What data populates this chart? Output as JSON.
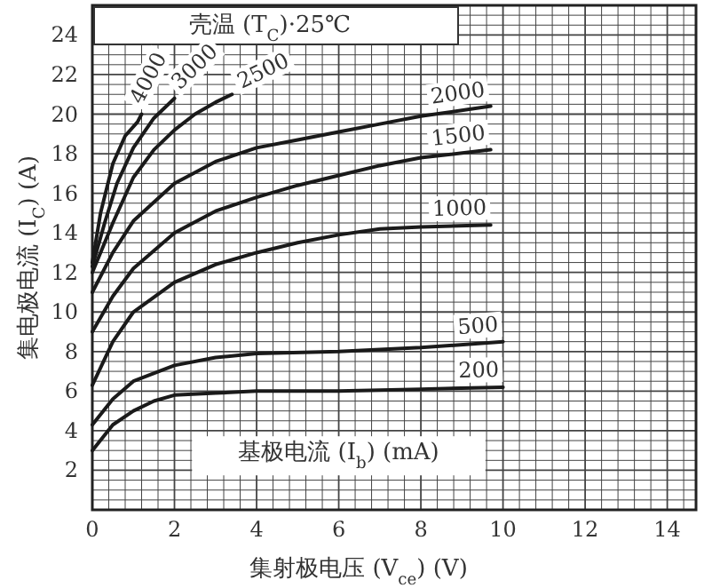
{
  "chart_data": {
    "type": "line",
    "title": "壳温 (T$_{C}$)·25℃",
    "xlabel": "集射极电压 (V$_{ce}$) (V)",
    "ylabel": "集电极电流 (I$_{C}$) (A)",
    "xlim": [
      0,
      14.7
    ],
    "ylim": [
      0,
      25.5
    ],
    "xticks": [
      0,
      2,
      4,
      6,
      8,
      10,
      12,
      14
    ],
    "yticks": [
      2,
      4,
      6,
      8,
      10,
      12,
      14,
      16,
      18,
      20,
      22,
      24
    ],
    "grid": true,
    "line_style": "solid",
    "marker": "none",
    "series": [
      {
        "color": "#1a1a1a",
        "x": [
          0,
          0.5,
          1,
          1.5,
          2,
          3,
          4,
          6,
          8,
          10
        ],
        "values": [
          3,
          4.3,
          5,
          5.5,
          5.8,
          5.9,
          6,
          6,
          6.1,
          6.2
        ]
      },
      {
        "color": "#1a1a1a",
        "x": [
          0,
          0.5,
          1,
          2,
          3,
          4,
          6,
          8,
          10
        ],
        "values": [
          4.3,
          5.6,
          6.5,
          7.3,
          7.7,
          7.9,
          8,
          8.2,
          8.5
        ]
      },
      {
        "color": "#1a1a1a",
        "x": [
          0,
          0.5,
          1,
          2,
          3,
          4,
          5,
          6,
          7,
          8,
          9.7
        ],
        "values": [
          6.3,
          8.5,
          10,
          11.5,
          12.4,
          13,
          13.5,
          13.9,
          14.2,
          14.3,
          14.4
        ]
      },
      {
        "color": "#1a1a1a",
        "x": [
          0,
          0.5,
          1,
          2,
          3,
          4,
          5,
          6,
          7,
          8,
          9.7
        ],
        "values": [
          9,
          10.8,
          12.2,
          14,
          15.1,
          15.8,
          16.4,
          16.9,
          17.4,
          17.8,
          18.2
        ]
      },
      {
        "color": "#1a1a1a",
        "x": [
          0,
          0.5,
          1,
          2,
          3,
          4,
          5,
          6,
          7,
          8,
          9.7
        ],
        "values": [
          11,
          13,
          14.6,
          16.5,
          17.6,
          18.3,
          18.7,
          19.1,
          19.5,
          19.9,
          20.4
        ]
      },
      {
        "color": "#1a1a1a",
        "x": [
          0,
          0.5,
          1,
          1.5,
          2,
          2.5,
          3,
          3.4
        ],
        "values": [
          12,
          14.5,
          16.8,
          18.2,
          19.2,
          20,
          20.6,
          21
        ]
      },
      {
        "color": "#1a1a1a",
        "x": [
          0,
          0.3,
          0.6,
          1,
          1.5,
          2
        ],
        "values": [
          12.3,
          14.5,
          16.5,
          18.3,
          19.8,
          20.8
        ]
      },
      {
        "color": "#1a1a1a",
        "x": [
          0,
          0.2,
          0.5,
          0.8,
          1.1,
          1.2
        ],
        "values": [
          12.5,
          15,
          17.5,
          18.9,
          19.6,
          20
        ]
      }
    ],
    "annotations": [
      {
        "text": "200",
        "x": 10,
        "y": 6.2
      },
      {
        "text": "500",
        "x": 10,
        "y": 8.5
      },
      {
        "text": "1000",
        "x": 9.7,
        "y": 14.4
      },
      {
        "text": "1500",
        "x": 9.7,
        "y": 18.2
      },
      {
        "text": "2000",
        "x": 9.7,
        "y": 20.4
      },
      {
        "text": "2500",
        "x": 3.4,
        "y": 21
      },
      {
        "text": "3000",
        "x": 2,
        "y": 20.8
      },
      {
        "text": "4000",
        "x": 1.2,
        "y": 20
      },
      "基极电流 (I$_{b}$) (mA)"
    ]
  }
}
